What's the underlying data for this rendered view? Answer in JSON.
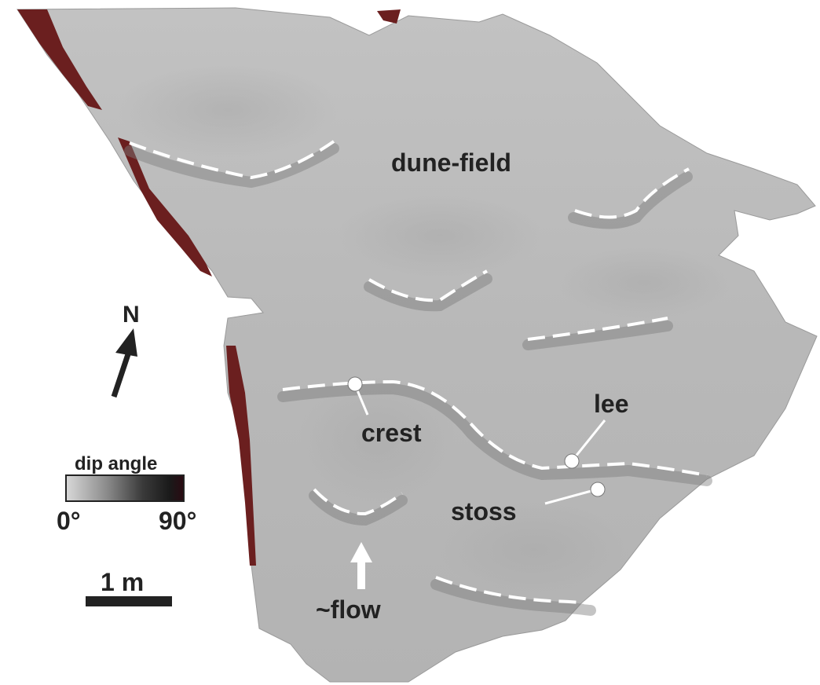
{
  "labels": {
    "dune_field": "dune-field",
    "crest": "crest",
    "lee": "lee",
    "stoss": "stoss",
    "flow": "~flow"
  },
  "north_arrow": {
    "label": "N"
  },
  "legend": {
    "title": "dip angle",
    "min_label": "0°",
    "max_label": "90°",
    "ramp_colors": [
      "#d9d9d9",
      "#8a8a8a",
      "#3a3a3a",
      "#1a1a1a",
      "#2a0a12"
    ]
  },
  "scale_bar": {
    "label": "1 m"
  },
  "colors": {
    "surface": "#b9b9b9",
    "steep_face": "#6b1f1f",
    "crest_line": "#ffffff",
    "text": "#222222"
  }
}
